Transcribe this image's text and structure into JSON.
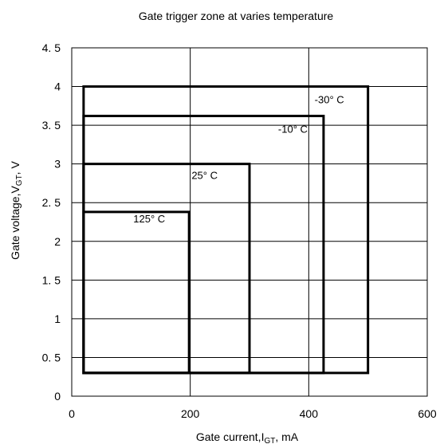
{
  "chart_data": {
    "type": "area",
    "title": "Gate trigger zone at varies  temperature",
    "xlabel": {
      "prefix": "Gate current,I",
      "sub": "GT",
      "suffix": ",  mA"
    },
    "ylabel": {
      "prefix": "Gate voltage,V",
      "sub": "GT",
      "suffix": ",  V"
    },
    "xlim": [
      0,
      600
    ],
    "ylim": [
      0,
      4.5
    ],
    "x_ticks": [
      0,
      200,
      400,
      600
    ],
    "x_tick_labels": [
      "0",
      "200",
      "400",
      "600"
    ],
    "y_ticks": [
      0,
      0.5,
      1,
      1.5,
      2,
      2.5,
      3,
      3.5,
      4,
      4.5
    ],
    "y_tick_labels": [
      "0",
      "0. 5",
      "1",
      "1. 5",
      "2",
      "2. 5",
      "3",
      "3. 5",
      "4",
      "4. 5"
    ],
    "grid": true,
    "zones": [
      {
        "label": "-30°  C",
        "x_min": 20,
        "x_max": 500,
        "y_min": 0.3,
        "y_max": 4.0
      },
      {
        "label": "-10°  C",
        "x_min": 20,
        "x_max": 425,
        "y_min": 0.3,
        "y_max": 3.62
      },
      {
        "label": "25°  C",
        "x_min": 20,
        "x_max": 300,
        "y_min": 0.3,
        "y_max": 3.0
      },
      {
        "label": "125°  C",
        "x_min": 20,
        "x_max": 198,
        "y_min": 0.3,
        "y_max": 2.38
      }
    ]
  }
}
